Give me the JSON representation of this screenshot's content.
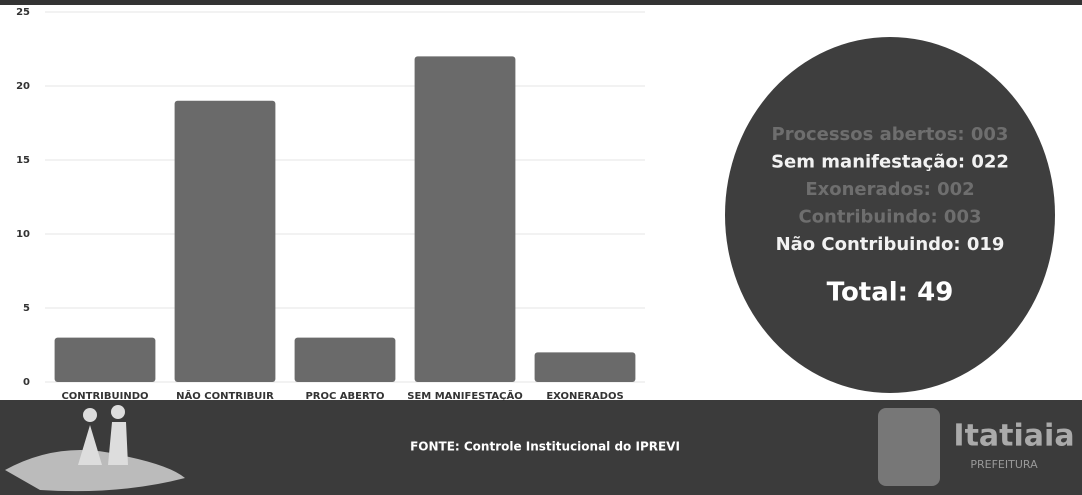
{
  "chart_data": {
    "type": "bar",
    "categories": [
      "CONTRIBUINDO",
      "NÃO CONTRIBUIR",
      "PROC ABERTO",
      "SEM MANIFESTAÇÃO",
      "EXONERADOS"
    ],
    "values": [
      3,
      19,
      3,
      22,
      2
    ],
    "color": "#6a6a6a",
    "ylim": [
      0,
      25
    ],
    "yticks": [
      0,
      5,
      10,
      15,
      20,
      25
    ],
    "grid": true,
    "annotations": [
      "Processos abertos: 003",
      "Sem manifestação: 022",
      "Exonerados: 002",
      "Contribuindo: 003",
      "Não Contribuindo: 019"
    ],
    "total": "Total: 49"
  },
  "footer": {
    "source": "FONTE: Controle Institucional do IPREVI",
    "logo": "Itatiaia",
    "logo_subtitle": "PREFEITURA"
  }
}
